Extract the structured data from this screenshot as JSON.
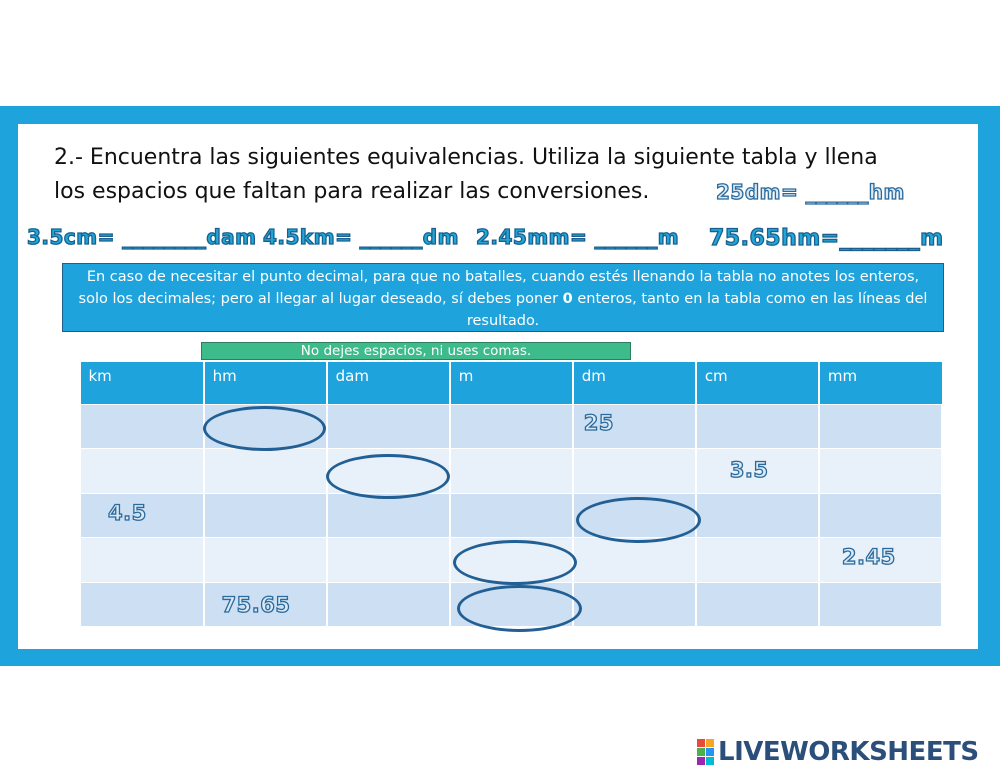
{
  "question": {
    "line1": "2.- Encuentra las siguientes equivalencias. Utiliza la siguiente tabla y llena",
    "line2": "los espacios que faltan para realizar las conversiones."
  },
  "equations": {
    "eq1": "25dm= ______hm",
    "eq2": "3.5cm= ________dam",
    "eq3": "4.5km= ______dm",
    "eq4": "2.45mm= ______m",
    "eq5": "75.65hm=_______m"
  },
  "note": {
    "part1": "En caso de necesitar el punto decimal, para que no batalles, cuando estés llenando la tabla no anotes los enteros, solo los decimales; pero al llegar al lugar deseado, sí debes  poner ",
    "bold": "0",
    "part2": " enteros, tanto en la tabla como en las líneas del resultado."
  },
  "hint": "No dejes espacios, ni uses comas.",
  "table": {
    "headers": [
      "km",
      "hm",
      "dam",
      "m",
      "dm",
      "cm",
      "mm"
    ],
    "values": {
      "r1_dm": "25",
      "r2_cm": "3.5",
      "r3_km": "4.5",
      "r4_mm": "2.45",
      "r5_hm": "75.65"
    }
  },
  "logo": {
    "text": "LIVEWORKSHEETS",
    "icon_letters": [
      "L",
      "I",
      "V",
      "E"
    ],
    "colors": [
      "#e64b3c",
      "#f5a623",
      "#4caf50",
      "#2196f3",
      "#9c27b0",
      "#00bcd4"
    ]
  },
  "colors": {
    "frame": "#1fa3dc",
    "note_bg": "#1fa3dc",
    "hint_bg": "#3dbb8a",
    "row_dark": "#cde0f3",
    "row_light": "#e8f0f9",
    "oval": "#225f94"
  }
}
